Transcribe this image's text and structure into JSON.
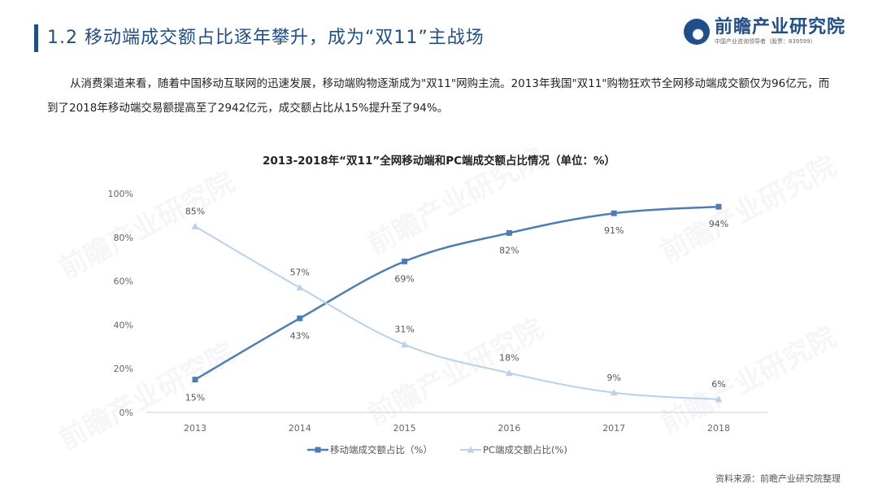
{
  "header": {
    "title": "1.2 移动端成交额占比逐年攀升，成为“双11”主战场",
    "logo_name": "前瞻产业研究院",
    "logo_sub": "中国产业咨询领导者（股票：839599）"
  },
  "intro": "从消费渠道来看，随着中国移动互联网的迅速发展，移动端购物逐渐成为\"双11\"网购主流。2013年我国\"双11\"购物狂欢节全网移动端成交额仅为96亿元，而到了2018年移动端交易额提高至了2942亿元，成交额占比从15%提升至了94%。",
  "source": "资料来源：前瞻产业研究院整理",
  "watermark": "前瞻产业研究院",
  "chart_data": {
    "type": "line",
    "title": "2013-2018年“双11”全网移动端和PC端成交额占比情况（单位：%）",
    "x": [
      "2013",
      "2014",
      "2015",
      "2016",
      "2017",
      "2018"
    ],
    "yticks": [
      "0%",
      "20%",
      "40%",
      "60%",
      "80%",
      "100%"
    ],
    "ylim": [
      0,
      100
    ],
    "grid": false,
    "legend_position": "bottom",
    "series": [
      {
        "name": "移动端成交额占比（%）",
        "values": [
          15,
          43,
          69,
          82,
          91,
          94
        ],
        "labels": [
          "15%",
          "43%",
          "69%",
          "82%",
          "91%",
          "94%"
        ],
        "color": "#4a7ebb",
        "marker": "square"
      },
      {
        "name": "PC端成交额占比(%)",
        "values": [
          85,
          57,
          31,
          18,
          9,
          6
        ],
        "labels": [
          "85%",
          "57%",
          "31%",
          "18%",
          "9%",
          "6%"
        ],
        "color": "#b8d2ec",
        "marker": "triangle"
      }
    ]
  }
}
